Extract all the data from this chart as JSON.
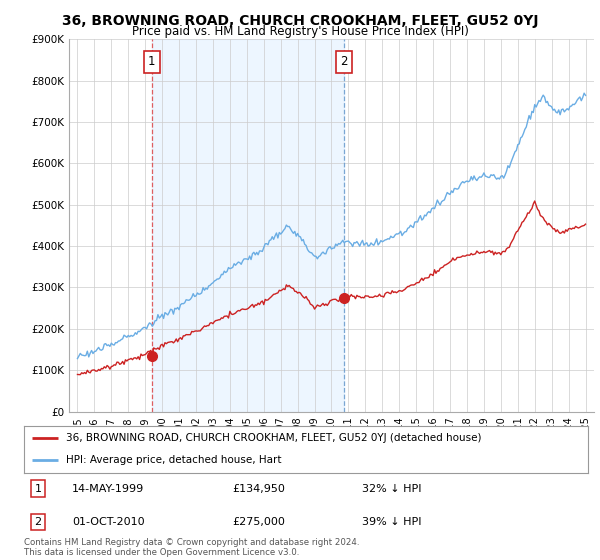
{
  "title": "36, BROWNING ROAD, CHURCH CROOKHAM, FLEET, GU52 0YJ",
  "subtitle": "Price paid vs. HM Land Registry's House Price Index (HPI)",
  "ylim": [
    0,
    900000
  ],
  "yticks": [
    0,
    100000,
    200000,
    300000,
    400000,
    500000,
    600000,
    700000,
    800000,
    900000
  ],
  "ytick_labels": [
    "£0",
    "£100K",
    "£200K",
    "£300K",
    "£400K",
    "£500K",
    "£600K",
    "£700K",
    "£800K",
    "£900K"
  ],
  "sale1_date": 1999.38,
  "sale1_price": 134950,
  "sale1_label": "1",
  "sale1_vline_color": "#dd4444",
  "sale1_vline_style": "dashed",
  "sale2_date": 2010.75,
  "sale2_price": 275000,
  "sale2_label": "2",
  "sale2_vline_color": "#6699cc",
  "sale2_vline_style": "dashed",
  "hpi_color": "#6aade4",
  "property_color": "#cc2222",
  "fill_color": "#ddeeff",
  "background_color": "#ffffff",
  "grid_color": "#cccccc",
  "legend_label_property": "36, BROWNING ROAD, CHURCH CROOKHAM, FLEET, GU52 0YJ (detached house)",
  "legend_label_hpi": "HPI: Average price, detached house, Hart",
  "annotation1_date": "14-MAY-1999",
  "annotation1_price": "£134,950",
  "annotation1_pct": "32% ↓ HPI",
  "annotation2_date": "01-OCT-2010",
  "annotation2_price": "£275,000",
  "annotation2_pct": "39% ↓ HPI",
  "footnote": "Contains HM Land Registry data © Crown copyright and database right 2024.\nThis data is licensed under the Open Government Licence v3.0."
}
